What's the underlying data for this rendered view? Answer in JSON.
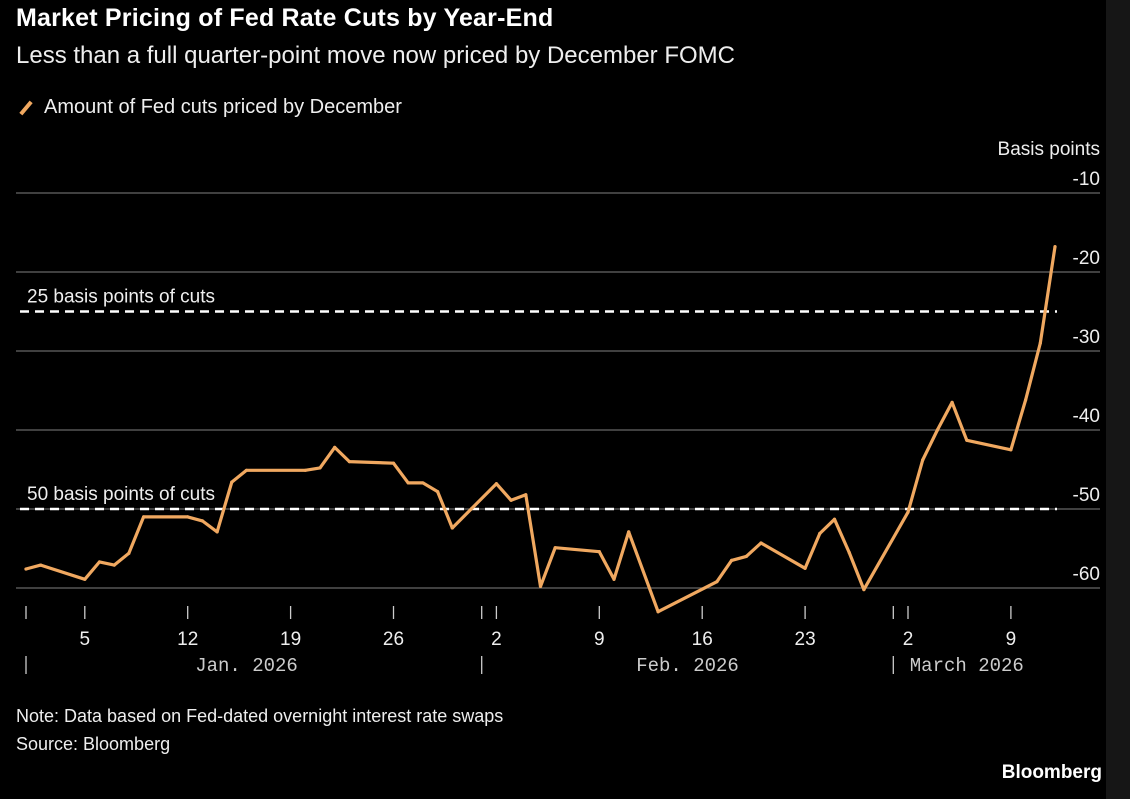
{
  "title": "Market Pricing of Fed Rate Cuts by Year-End",
  "subtitle": "Less than a full quarter-point move now priced by December FOMC",
  "note": "Note: Data based on Fed-dated overnight interest rate swaps",
  "source": "Source: Bloomberg",
  "brand": "Bloomberg",
  "chart_data": {
    "type": "line",
    "ylabel": "Basis points",
    "ylim": [
      -64,
      -10
    ],
    "y_ticks": [
      -10,
      -20,
      -30,
      -40,
      -50,
      -60
    ],
    "y_tick_labels": [
      "-10",
      "-20",
      "-30",
      "-40",
      "-50",
      "-60"
    ],
    "y_axis_position": "right",
    "grid": true,
    "legend_position": "top-left",
    "line_color": "#f0a860",
    "x_ticks": [
      {
        "date": "2026-01-05",
        "label": "5"
      },
      {
        "date": "2026-01-12",
        "label": "12"
      },
      {
        "date": "2026-01-19",
        "label": "19"
      },
      {
        "date": "2026-01-26",
        "label": "26"
      },
      {
        "date": "2026-02-02",
        "label": "2"
      },
      {
        "date": "2026-02-09",
        "label": "9"
      },
      {
        "date": "2026-02-16",
        "label": "16"
      },
      {
        "date": "2026-02-23",
        "label": "23"
      },
      {
        "date": "2026-03-02",
        "label": "2"
      },
      {
        "date": "2026-03-09",
        "label": "9"
      }
    ],
    "months": [
      {
        "start": "2026-01-01",
        "label": "Jan. 2026",
        "label_date": "2026-01-16"
      },
      {
        "start": "2026-02-01",
        "label": "Feb. 2026",
        "label_date": "2026-02-15"
      },
      {
        "start": "2026-03-01",
        "label": "March 2026",
        "label_date": "2026-03-06"
      }
    ],
    "reference_lines": [
      {
        "value": -25,
        "label": "25 basis points of cuts"
      },
      {
        "value": -50,
        "label": "50 basis points of cuts"
      }
    ],
    "series": [
      {
        "name": "Amount of Fed cuts priced by December",
        "points": [
          [
            "2026-01-01",
            -57.6
          ],
          [
            "2026-01-02",
            -57.1
          ],
          [
            "2026-01-05",
            -58.9
          ],
          [
            "2026-01-06",
            -56.7
          ],
          [
            "2026-01-07",
            -57.1
          ],
          [
            "2026-01-08",
            -55.6
          ],
          [
            "2026-01-09",
            -51.0
          ],
          [
            "2026-01-12",
            -51.0
          ],
          [
            "2026-01-13",
            -51.5
          ],
          [
            "2026-01-14",
            -52.9
          ],
          [
            "2026-01-15",
            -46.6
          ],
          [
            "2026-01-16",
            -45.1
          ],
          [
            "2026-01-20",
            -45.1
          ],
          [
            "2026-01-21",
            -44.8
          ],
          [
            "2026-01-22",
            -42.2
          ],
          [
            "2026-01-23",
            -44.0
          ],
          [
            "2026-01-26",
            -44.2
          ],
          [
            "2026-01-27",
            -46.7
          ],
          [
            "2026-01-28",
            -46.7
          ],
          [
            "2026-01-29",
            -47.8
          ],
          [
            "2026-01-30",
            -52.4
          ],
          [
            "2026-02-02",
            -46.8
          ],
          [
            "2026-02-03",
            -48.9
          ],
          [
            "2026-02-04",
            -48.2
          ],
          [
            "2026-02-05",
            -59.8
          ],
          [
            "2026-02-06",
            -54.9
          ],
          [
            "2026-02-09",
            -55.4
          ],
          [
            "2026-02-10",
            -58.9
          ],
          [
            "2026-02-11",
            -52.9
          ],
          [
            "2026-02-13",
            -63.0
          ],
          [
            "2026-02-17",
            -59.2
          ],
          [
            "2026-02-18",
            -56.5
          ],
          [
            "2026-02-19",
            -56.0
          ],
          [
            "2026-02-20",
            -54.3
          ],
          [
            "2026-02-23",
            -57.5
          ],
          [
            "2026-02-24",
            -53.1
          ],
          [
            "2026-02-25",
            -51.3
          ],
          [
            "2026-02-26",
            -55.5
          ],
          [
            "2026-02-27",
            -60.2
          ],
          [
            "2026-03-02",
            -50.4
          ],
          [
            "2026-03-03",
            -43.8
          ],
          [
            "2026-03-04",
            -40.0
          ],
          [
            "2026-03-05",
            -36.5
          ],
          [
            "2026-03-06",
            -41.3
          ],
          [
            "2026-03-09",
            -42.5
          ],
          [
            "2026-03-10",
            -36.2
          ],
          [
            "2026-03-11",
            -29.0
          ],
          [
            "2026-03-12",
            -16.8
          ]
        ]
      }
    ]
  }
}
